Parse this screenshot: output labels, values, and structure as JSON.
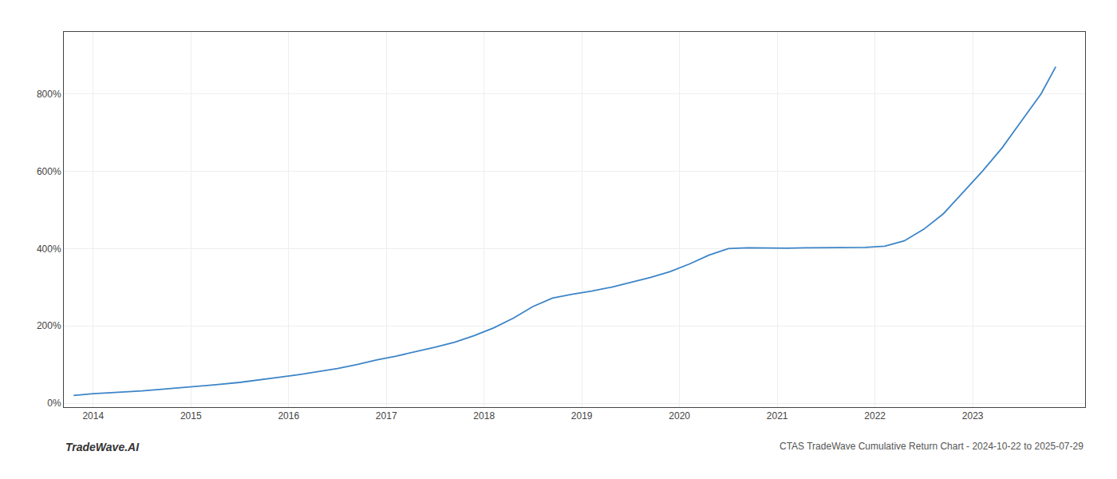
{
  "chart_data": {
    "type": "line",
    "x": [
      2013.8,
      2014.0,
      2014.15,
      2014.3,
      2014.5,
      2014.7,
      2014.9,
      2015.1,
      2015.3,
      2015.5,
      2015.7,
      2015.9,
      2016.1,
      2016.3,
      2016.5,
      2016.7,
      2016.9,
      2017.1,
      2017.3,
      2017.5,
      2017.7,
      2017.9,
      2018.1,
      2018.3,
      2018.5,
      2018.7,
      2018.9,
      2019.1,
      2019.3,
      2019.5,
      2019.7,
      2019.9,
      2020.1,
      2020.3,
      2020.5,
      2020.7,
      2020.9,
      2021.1,
      2021.3,
      2021.5,
      2021.7,
      2021.9,
      2022.1,
      2022.3,
      2022.5,
      2022.7,
      2022.9,
      2023.1,
      2023.3,
      2023.5,
      2023.7,
      2023.85
    ],
    "values": [
      20,
      25,
      27,
      29,
      32,
      36,
      40,
      44,
      49,
      54,
      60,
      67,
      74,
      82,
      90,
      100,
      112,
      122,
      133,
      145,
      158,
      175,
      195,
      220,
      250,
      272,
      282,
      290,
      300,
      312,
      325,
      340,
      360,
      383,
      400,
      402,
      401,
      401,
      402,
      402,
      402,
      403,
      406,
      420,
      450,
      490,
      545,
      600,
      660,
      730,
      800,
      870
    ],
    "color": "#3d85c8",
    "xlim": [
      2013.7,
      2024.15
    ],
    "ylim": [
      -10,
      960
    ],
    "xticks": [
      2014,
      2015,
      2016,
      2017,
      2018,
      2019,
      2020,
      2021,
      2022,
      2023
    ],
    "yticks": [
      {
        "value": 0,
        "label": "0%"
      },
      {
        "value": 200,
        "label": "200%"
      },
      {
        "value": 400,
        "label": "400%"
      },
      {
        "value": 600,
        "label": "600%"
      },
      {
        "value": 800,
        "label": "800%"
      }
    ],
    "grid": true,
    "annotations": [
      "TradeWave.AI",
      "CTAS TradeWave Cumulative Return Chart - 2024-10-22 to 2025-07-29"
    ]
  }
}
